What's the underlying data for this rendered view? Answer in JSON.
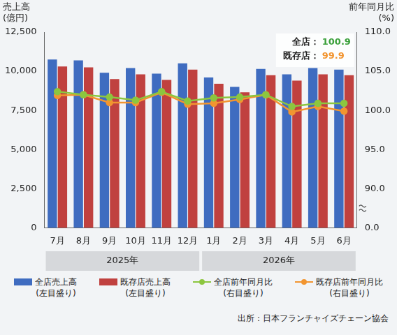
{
  "chart_data": {
    "type": "bar",
    "ylabel": [
      "売上高",
      "(億円)"
    ],
    "y2label": [
      "前年同月比",
      "(%)"
    ],
    "categories": [
      "7月",
      "8月",
      "9月",
      "10月",
      "11月",
      "12月",
      "1月",
      "2月",
      "3月",
      "4月",
      "5月",
      "6月"
    ],
    "groups": [
      {
        "label": "2025年",
        "from": "7月",
        "to": "12月"
      },
      {
        "label": "2026年",
        "from": "1月",
        "to": "6月"
      }
    ],
    "series": [
      {
        "name": "全店売上高",
        "name_note": "(左目盛り)",
        "type": "bar",
        "axis": "y",
        "color": "#3f6cc0",
        "values": [
          10750,
          10700,
          9900,
          10200,
          9850,
          10500,
          9600,
          9000,
          10150,
          9800,
          10200,
          10100
        ]
      },
      {
        "name": "既存店売上高",
        "name_note": "(左目盛り)",
        "type": "bar",
        "axis": "y",
        "color": "#c0413f",
        "values": [
          10300,
          10250,
          9500,
          9800,
          9450,
          10100,
          9200,
          8650,
          9750,
          9400,
          9800,
          9750
        ]
      },
      {
        "name": "全店前年同月比",
        "name_note": "(右目盛り)",
        "type": "line",
        "axis": "y2",
        "color": "#8cc63f",
        "marker": "circle",
        "line_style": "solid",
        "values": [
          102.4,
          102.0,
          101.7,
          101.3,
          102.4,
          101.2,
          101.6,
          101.7,
          102.0,
          100.5,
          100.9,
          100.9
        ]
      },
      {
        "name": "既存店前年同月比",
        "name_note": "(右目盛り)",
        "type": "line",
        "axis": "y2",
        "color": "#f29530",
        "marker": "circle",
        "line_style": "solid",
        "values": [
          101.9,
          102.0,
          101.0,
          101.0,
          102.3,
          100.8,
          100.9,
          101.4,
          102.0,
          99.8,
          100.5,
          99.9
        ]
      }
    ],
    "ylim": [
      0,
      12500
    ],
    "yticks": [
      0,
      {
        "value": 2500,
        "label": "2,500"
      },
      {
        "value": 5000,
        "label": "5,000"
      },
      {
        "value": 7500,
        "label": "7,500"
      },
      {
        "value": 10000,
        "label": "10,000"
      },
      {
        "value": 12500,
        "label": "12,500"
      }
    ],
    "y2lim": [
      0,
      110
    ],
    "y2ticks": [
      {
        "value": 0,
        "label": "0.0"
      },
      {
        "value": 90,
        "label": "90.0"
      },
      {
        "value": 95,
        "label": "95.0"
      },
      {
        "value": 100,
        "label": "100.0"
      },
      {
        "value": 105,
        "label": "105.0"
      },
      {
        "value": 110,
        "label": "110.0"
      }
    ],
    "annotations": [
      {
        "label": "全店：",
        "value": 100.9,
        "color": "#3aa03a"
      },
      {
        "label": "既存店：",
        "value": 99.9,
        "color": "#f29530"
      }
    ],
    "grid": false,
    "legend": "bottom",
    "source": "出所：日本フランチャイズチェーン協会"
  }
}
